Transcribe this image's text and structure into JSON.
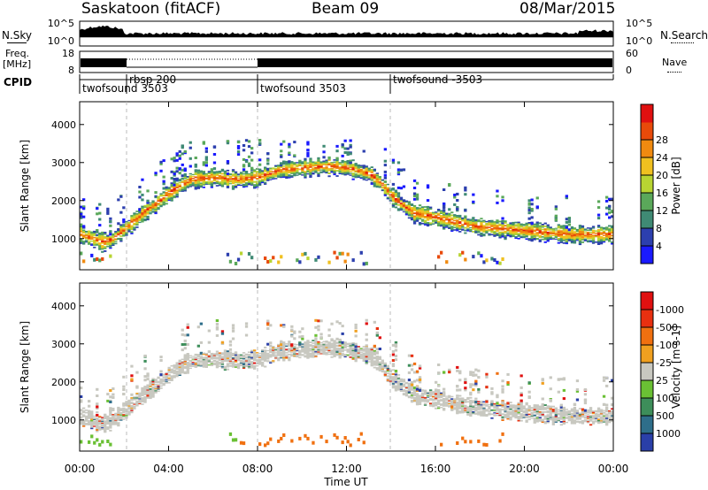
{
  "header": {
    "station": "Saskatoon (fitACF)",
    "beam": "Beam 09",
    "date": "08/Mar/2015"
  },
  "noise_panel": {
    "left_label": "N.Sky",
    "right_label": "N.Search",
    "left_ticks": [
      "10^5",
      "10^0"
    ],
    "right_ticks": [
      "10^5",
      "10^0"
    ]
  },
  "freq_panel": {
    "left_label_top": "Freq.",
    "left_label_bottom": "[MHz]",
    "right_label": "Nave",
    "left_ticks": [
      "18",
      "8"
    ],
    "right_ticks": [
      "60",
      "0"
    ]
  },
  "cpid_panel": {
    "label": "CPID",
    "modes": [
      {
        "name": "twofsound 3503",
        "start_hour": 0.0
      },
      {
        "name": "rbsp 200",
        "start_hour": 2.0
      },
      {
        "name": "twofsound 3503",
        "start_hour": 8.0
      },
      {
        "name": "twofsound -3503",
        "start_hour": 14.0
      }
    ]
  },
  "chart_data": [
    {
      "type": "heatmap",
      "name": "power",
      "ylabel": "Slant Range [km]",
      "colorbar_label": "Power [dB]",
      "yticks": [
        1000,
        2000,
        3000,
        4000
      ],
      "ylim": [
        180,
        4600
      ],
      "colorbar_ticks": [
        "4",
        "8",
        "12",
        "16",
        "20",
        "24",
        "28"
      ],
      "colorbar_colors": [
        "#1a1aff",
        "#2c3fae",
        "#3f8a74",
        "#5aa85a",
        "#b8d432",
        "#f0c020",
        "#f08a10",
        "#e84a0a",
        "#e01010"
      ],
      "bands": [
        {
          "t": [
            0,
            0.5,
            1,
            1.5,
            2,
            2.5,
            3,
            3.5,
            4,
            4.5,
            5,
            6,
            7,
            8,
            9,
            10,
            11,
            12,
            13,
            13.5,
            14,
            15,
            16,
            17,
            18,
            19,
            20,
            21,
            22,
            23,
            24
          ],
          "r": [
            1100,
            1000,
            900,
            1000,
            1250,
            1500,
            1750,
            1950,
            2200,
            2400,
            2550,
            2600,
            2550,
            2600,
            2800,
            2850,
            2900,
            2850,
            2700,
            2450,
            2100,
            1650,
            1550,
            1400,
            1300,
            1250,
            1200,
            1150,
            1100,
            1100,
            1100
          ],
          "level": 22
        }
      ]
    },
    {
      "type": "heatmap",
      "name": "velocity",
      "ylabel": "Slant Range [km]",
      "colorbar_label": "Velocity [m s-1]",
      "yticks": [
        1000,
        2000,
        3000,
        4000
      ],
      "ylim": [
        180,
        4600
      ],
      "colorbar_ticks": [
        "1000",
        "500",
        "100",
        "25",
        "-25",
        "-100",
        "-500",
        "-1000"
      ],
      "colorbar_colors": [
        "#2a3fa8",
        "#2e6e8a",
        "#3d8e5a",
        "#6ac034",
        "#c8c8c0",
        "#f0a020",
        "#f07010",
        "#e83010",
        "#e01010"
      ],
      "bands": [
        {
          "t": [
            0,
            0.5,
            1,
            1.5,
            2,
            2.5,
            3,
            3.5,
            4,
            4.5,
            5,
            6,
            7,
            8,
            9,
            10,
            11,
            12,
            13,
            13.5,
            14,
            15,
            16,
            17,
            18,
            19,
            20,
            21,
            22,
            23,
            24
          ],
          "r": [
            1100,
            1000,
            900,
            1000,
            1250,
            1500,
            1750,
            1950,
            2200,
            2400,
            2550,
            2600,
            2550,
            2600,
            2800,
            2850,
            2900,
            2850,
            2700,
            2450,
            2100,
            1650,
            1550,
            1400,
            1300,
            1250,
            1200,
            1150,
            1100,
            1100,
            1100
          ],
          "level": 25
        }
      ]
    }
  ],
  "xaxis": {
    "label": "Time UT",
    "ticks": [
      "00:00",
      "04:00",
      "08:00",
      "12:00",
      "16:00",
      "20:00",
      "00:00"
    ],
    "xlim": [
      0,
      24
    ]
  }
}
